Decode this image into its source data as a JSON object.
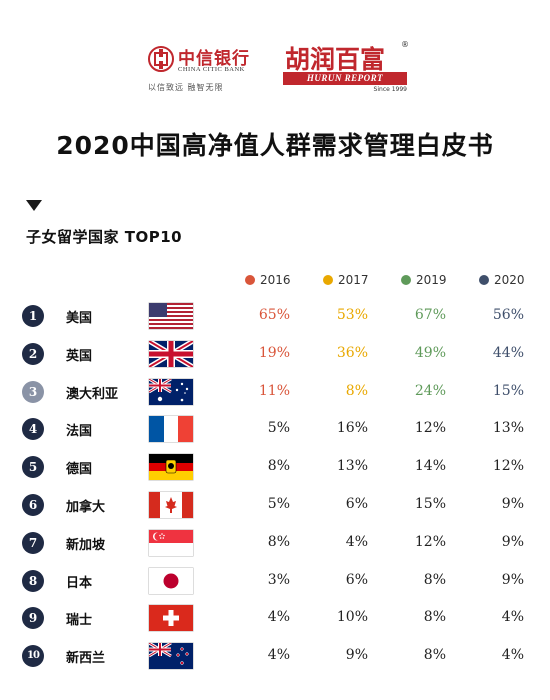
{
  "header": {
    "citic_name_cn": "中信银行",
    "citic_name_en": "CHINA CITIC BANK",
    "citic_slogan": "以信致远  融智无限",
    "hurun_name_cn": "胡润百富",
    "hurun_registered": "®",
    "hurun_name_en": "HURUN REPORT",
    "hurun_since": "Since 1999"
  },
  "title": "2020中国高净值人群需求管理白皮书",
  "section": {
    "subtitle": "子女留学国家 TOP10"
  },
  "colors": {
    "y2016": "#d9553a",
    "y2017": "#e9a800",
    "y2019": "#5f9a5a",
    "y2020": "#3f4f6b",
    "rank_dark": "#1f2a44",
    "rank_light": "#8a93a6",
    "brand_red": "#c0272d"
  },
  "legend": {
    "y2016": "2016",
    "y2017": "2017",
    "y2019": "2019",
    "y2020": "2020"
  },
  "rows": [
    {
      "rank": "1",
      "country": "美国",
      "flag": "usa-flag-icon",
      "v2016": "65%",
      "v2017": "53%",
      "v2019": "67%",
      "v2020": "56%",
      "colored": true
    },
    {
      "rank": "2",
      "country": "英国",
      "flag": "uk-flag-icon",
      "v2016": "19%",
      "v2017": "36%",
      "v2019": "49%",
      "v2020": "44%",
      "colored": true
    },
    {
      "rank": "3",
      "country": "澳大利亚",
      "flag": "australia-flag-icon",
      "v2016": "11%",
      "v2017": "8%",
      "v2019": "24%",
      "v2020": "15%",
      "colored": true
    },
    {
      "rank": "4",
      "country": "法国",
      "flag": "france-flag-icon",
      "v2016": "5%",
      "v2017": "16%",
      "v2019": "12%",
      "v2020": "13%",
      "colored": false
    },
    {
      "rank": "5",
      "country": "德国",
      "flag": "germany-flag-icon",
      "v2016": "8%",
      "v2017": "13%",
      "v2019": "14%",
      "v2020": "12%",
      "colored": false
    },
    {
      "rank": "6",
      "country": "加拿大",
      "flag": "canada-flag-icon",
      "v2016": "5%",
      "v2017": "6%",
      "v2019": "15%",
      "v2020": "9%",
      "colored": false
    },
    {
      "rank": "7",
      "country": "新加坡",
      "flag": "singapore-flag-icon",
      "v2016": "8%",
      "v2017": "4%",
      "v2019": "12%",
      "v2020": "9%",
      "colored": false
    },
    {
      "rank": "8",
      "country": "日本",
      "flag": "japan-flag-icon",
      "v2016": "3%",
      "v2017": "6%",
      "v2019": "8%",
      "v2020": "9%",
      "colored": false
    },
    {
      "rank": "9",
      "country": "瑞士",
      "flag": "switzerland-flag-icon",
      "v2016": "4%",
      "v2017": "10%",
      "v2019": "8%",
      "v2020": "4%",
      "colored": false
    },
    {
      "rank": "10",
      "country": "新西兰",
      "flag": "newzealand-flag-icon",
      "v2016": "4%",
      "v2017": "9%",
      "v2019": "8%",
      "v2020": "4%",
      "colored": false
    }
  ]
}
